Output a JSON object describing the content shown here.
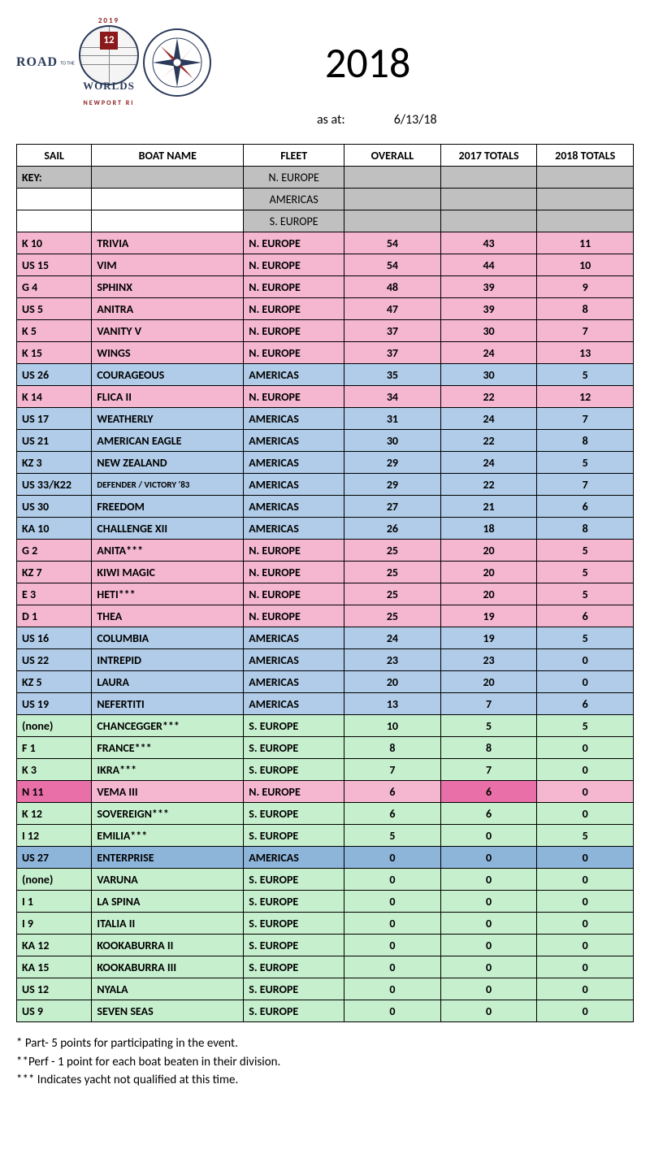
{
  "header": {
    "road_text": "ROAD",
    "to_the": "TO THE",
    "worlds": "WORLDS",
    "year2019": "2019",
    "newport": "NEWPORT RI",
    "square": "12",
    "title_year": "2018",
    "as_at_label": "as at:",
    "as_at_date": "6/13/18"
  },
  "columns": {
    "sail": "SAIL",
    "boat": "BOAT NAME",
    "fleet": "FLEET",
    "overall": "OVERALL",
    "t2017": "2017 TOTALS",
    "t2018": "2018 TOTALS"
  },
  "key": {
    "label": "KEY:",
    "fleets": [
      "N. EUROPE",
      "AMERICAS",
      "S. EUROPE"
    ]
  },
  "fleet_colors": {
    "N. EUROPE": "fleet-pink",
    "AMERICAS": "fleet-blue",
    "S. EUROPE": "fleet-green"
  },
  "rows": [
    {
      "sail": "K 10",
      "boat": "TRIVIA",
      "fleet": "N. EUROPE",
      "overall": 54,
      "t2017": 43,
      "t2018": 11
    },
    {
      "sail": "US 15",
      "boat": "VIM",
      "fleet": "N. EUROPE",
      "overall": 54,
      "t2017": 44,
      "t2018": 10
    },
    {
      "sail": "G 4",
      "boat": "SPHINX",
      "fleet": "N. EUROPE",
      "overall": 48,
      "t2017": 39,
      "t2018": 9
    },
    {
      "sail": "US 5",
      "boat": "ANITRA",
      "fleet": "N. EUROPE",
      "overall": 47,
      "t2017": 39,
      "t2018": 8
    },
    {
      "sail": "K 5",
      "boat": "VANITY V",
      "fleet": "N. EUROPE",
      "overall": 37,
      "t2017": 30,
      "t2018": 7
    },
    {
      "sail": "K 15",
      "boat": "WINGS",
      "fleet": "N. EUROPE",
      "overall": 37,
      "t2017": 24,
      "t2018": 13
    },
    {
      "sail": "US 26",
      "boat": "COURAGEOUS",
      "fleet": "AMERICAS",
      "overall": 35,
      "t2017": 30,
      "t2018": 5
    },
    {
      "sail": "K 14",
      "boat": "FLICA II",
      "fleet": "N. EUROPE",
      "overall": 34,
      "t2017": 22,
      "t2018": 12
    },
    {
      "sail": "US 17",
      "boat": "WEATHERLY",
      "fleet": "AMERICAS",
      "overall": 31,
      "t2017": 24,
      "t2018": 7
    },
    {
      "sail": "US 21",
      "boat": "AMERICAN EAGLE",
      "fleet": "AMERICAS",
      "overall": 30,
      "t2017": 22,
      "t2018": 8
    },
    {
      "sail": "KZ 3",
      "boat": "NEW ZEALAND",
      "fleet": "AMERICAS",
      "overall": 29,
      "t2017": 24,
      "t2018": 5
    },
    {
      "sail": "US 33/K22",
      "boat": "DEFENDER / VICTORY '83",
      "fleet": "AMERICAS",
      "overall": 29,
      "t2017": 22,
      "t2018": 7,
      "small": true
    },
    {
      "sail": "US 30",
      "boat": "FREEDOM",
      "fleet": "AMERICAS",
      "overall": 27,
      "t2017": 21,
      "t2018": 6
    },
    {
      "sail": "KA 10",
      "boat": "CHALLENGE XII",
      "fleet": "AMERICAS",
      "overall": 26,
      "t2017": 18,
      "t2018": 8
    },
    {
      "sail": "G 2",
      "boat": "ANITA***",
      "fleet": "N. EUROPE",
      "overall": 25,
      "t2017": 20,
      "t2018": 5
    },
    {
      "sail": "KZ 7",
      "boat": "KIWI MAGIC",
      "fleet": "N. EUROPE",
      "overall": 25,
      "t2017": 20,
      "t2018": 5
    },
    {
      "sail": "E 3",
      "boat": "HETI***",
      "fleet": "N. EUROPE",
      "overall": 25,
      "t2017": 20,
      "t2018": 5
    },
    {
      "sail": "D 1",
      "boat": "THEA",
      "fleet": "N. EUROPE",
      "overall": 25,
      "t2017": 19,
      "t2018": 6
    },
    {
      "sail": "US 16",
      "boat": "COLUMBIA",
      "fleet": "AMERICAS",
      "overall": 24,
      "t2017": 19,
      "t2018": 5
    },
    {
      "sail": "US 22",
      "boat": "INTREPID",
      "fleet": "AMERICAS",
      "overall": 23,
      "t2017": 23,
      "t2018": 0
    },
    {
      "sail": "KZ 5",
      "boat": "LAURA",
      "fleet": "AMERICAS",
      "overall": 20,
      "t2017": 20,
      "t2018": 0
    },
    {
      "sail": "US 19",
      "boat": "NEFERTITI",
      "fleet": "AMERICAS",
      "overall": 13,
      "t2017": 7,
      "t2018": 6
    },
    {
      "sail": "(none)",
      "boat": "CHANCEGGER***",
      "fleet": "S. EUROPE",
      "overall": 10,
      "t2017": 5,
      "t2018": 5
    },
    {
      "sail": "F 1",
      "boat": "FRANCE***",
      "fleet": "S. EUROPE",
      "overall": 8,
      "t2017": 8,
      "t2018": 0
    },
    {
      "sail": "K 3",
      "boat": "IKRA***",
      "fleet": "S. EUROPE",
      "overall": 7,
      "t2017": 7,
      "t2018": 0
    },
    {
      "sail": "N 11",
      "boat": "VEMA III",
      "fleet": "N. EUROPE",
      "overall": 6,
      "t2017": 6,
      "t2018": 0,
      "highlight": true
    },
    {
      "sail": "K 12",
      "boat": "SOVEREIGN***",
      "fleet": "S. EUROPE",
      "overall": 6,
      "t2017": 6,
      "t2018": 0
    },
    {
      "sail": "I 12",
      "boat": "EMILIA***",
      "fleet": "S. EUROPE",
      "overall": 5,
      "t2017": 0,
      "t2018": 5
    },
    {
      "sail": "US 27",
      "boat": "ENTERPRISE",
      "fleet": "AMERICAS",
      "overall": 0,
      "t2017": 0,
      "t2018": 0,
      "midblue": true
    },
    {
      "sail": "(none)",
      "boat": "VARUNA",
      "fleet": "S. EUROPE",
      "overall": 0,
      "t2017": 0,
      "t2018": 0
    },
    {
      "sail": "I 1",
      "boat": "LA SPINA",
      "fleet": "S. EUROPE",
      "overall": 0,
      "t2017": 0,
      "t2018": 0
    },
    {
      "sail": "I 9",
      "boat": "ITALIA II",
      "fleet": "S. EUROPE",
      "overall": 0,
      "t2017": 0,
      "t2018": 0
    },
    {
      "sail": "KA 12",
      "boat": "KOOKABURRA II",
      "fleet": "S. EUROPE",
      "overall": 0,
      "t2017": 0,
      "t2018": 0
    },
    {
      "sail": "KA 15",
      "boat": "KOOKABURRA III",
      "fleet": "S. EUROPE",
      "overall": 0,
      "t2017": 0,
      "t2018": 0
    },
    {
      "sail": "US 12",
      "boat": "NYALA",
      "fleet": "S. EUROPE",
      "overall": 0,
      "t2017": 0,
      "t2018": 0
    },
    {
      "sail": "US 9",
      "boat": "SEVEN SEAS",
      "fleet": "S. EUROPE",
      "overall": 0,
      "t2017": 0,
      "t2018": 0
    }
  ],
  "footnotes": [
    "* Part- 5 points for participating in the event.",
    "**Perf - 1 point for each boat beaten in their division.",
    "*** Indicates yacht not qualified at this time."
  ]
}
